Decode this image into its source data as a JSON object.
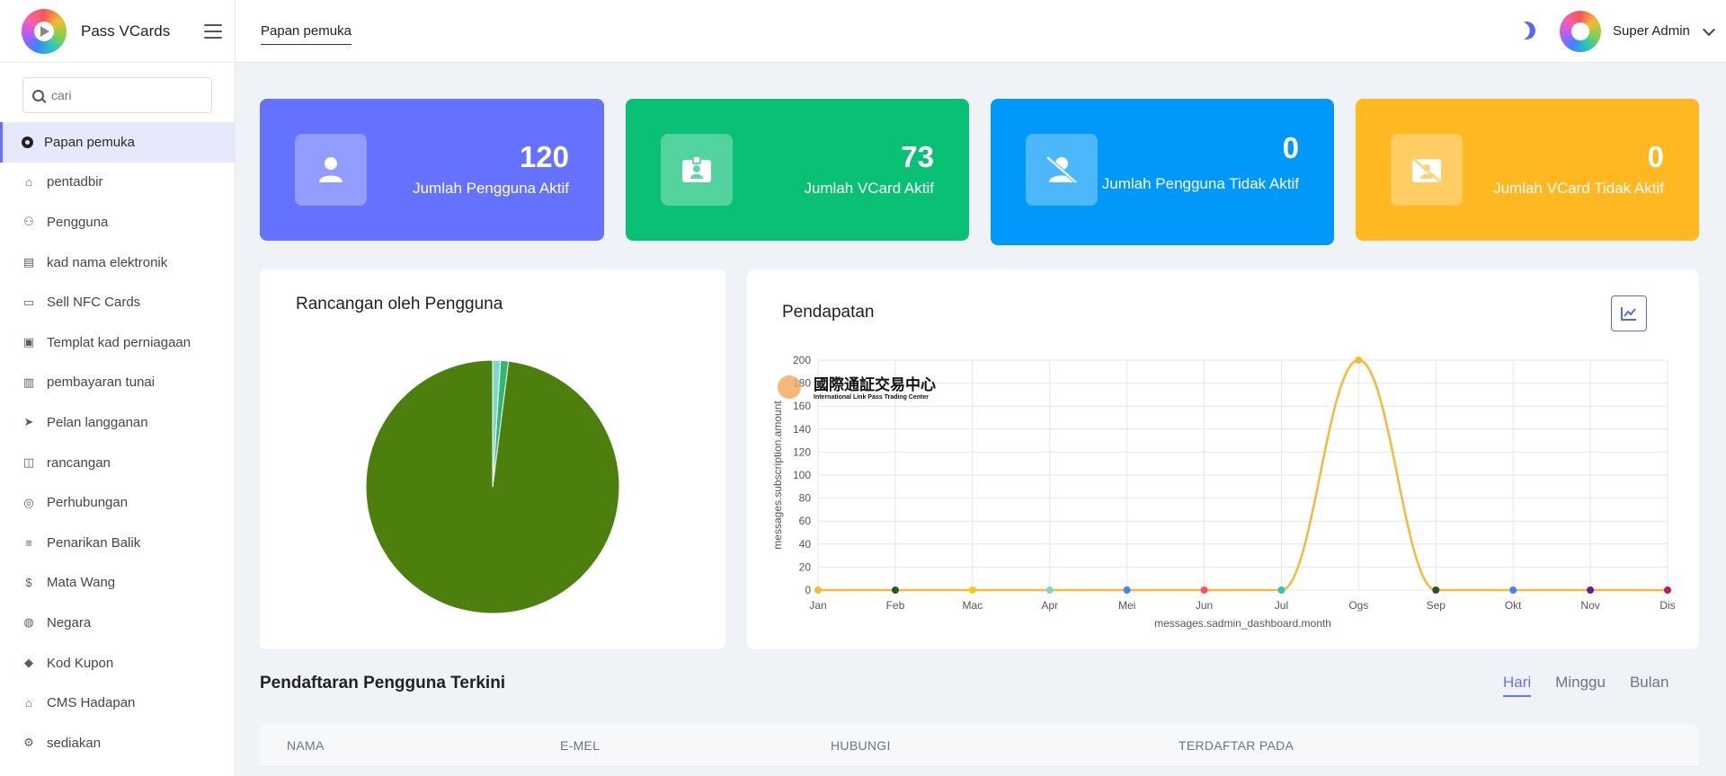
{
  "app": {
    "name": "Pass VCards"
  },
  "header": {
    "tab": "Papan pemuka",
    "user_name": "Super Admin"
  },
  "search": {
    "placeholder": "cari"
  },
  "sidebar": {
    "items": [
      {
        "label": "Papan pemuka",
        "icon": "dashboard-icon",
        "active": true
      },
      {
        "label": "pentadbir",
        "icon": "admin-home-icon"
      },
      {
        "label": "Pengguna",
        "icon": "users-icon"
      },
      {
        "label": "kad nama elektronik",
        "icon": "id-card-icon"
      },
      {
        "label": "Sell NFC Cards",
        "icon": "credit-card-icon"
      },
      {
        "label": "Templat kad perniagaan",
        "icon": "template-icon"
      },
      {
        "label": "pembayaran tunai",
        "icon": "cash-icon"
      },
      {
        "label": "Pelan langganan",
        "icon": "paper-plane-icon"
      },
      {
        "label": "rancangan",
        "icon": "layout-icon"
      },
      {
        "label": "Perhubungan",
        "icon": "coins-icon"
      },
      {
        "label": "Penarikan Balik",
        "icon": "receipt-icon"
      },
      {
        "label": "Mata Wang",
        "icon": "dollar-icon"
      },
      {
        "label": "Negara",
        "icon": "globe-icon"
      },
      {
        "label": "Kod Kupon",
        "icon": "tag-icon"
      },
      {
        "label": "CMS Hadapan",
        "icon": "home-icon"
      },
      {
        "label": "sediakan",
        "icon": "settings-icon"
      }
    ]
  },
  "stats": [
    {
      "value": "120",
      "label": "Jumlah Pengguna Aktif",
      "color": "#6571ff",
      "icon": "user-icon"
    },
    {
      "value": "73",
      "label": "Jumlah VCard Aktif",
      "color": "#0ac074",
      "icon": "vcard-icon"
    },
    {
      "value": "0",
      "label": "Jumlah Pengguna Tidak Aktif",
      "color": "#0099fb",
      "icon": "user-slash-icon"
    },
    {
      "value": "0",
      "label": "Jumlah VCard Tidak Aktif",
      "color": "#ffb821",
      "icon": "vcard-slash-icon"
    }
  ],
  "pie_panel": {
    "title": "Rancangan oleh Pengguna"
  },
  "revenue_panel": {
    "title": "Pendapatan",
    "watermark_line1": "國際通証交易中心",
    "watermark_line2": "International Link Pass Trading Center"
  },
  "chart_data": [
    {
      "type": "pie",
      "title": "Rancangan oleh Pengguna",
      "slices": [
        {
          "value": 0.98,
          "color": "#4d7f0e"
        },
        {
          "value": 0.01,
          "color": "#7fd8c8"
        },
        {
          "value": 0.01,
          "color": "#2eb872"
        }
      ]
    },
    {
      "type": "line",
      "title": "Pendapatan",
      "xlabel": "messages.sadmin_dashboard.month",
      "ylabel": "messages.subscription.amount",
      "categories": [
        "Jan",
        "Feb",
        "Mac",
        "Apr",
        "Mei",
        "Jun",
        "Jul",
        "Ogs",
        "Sep",
        "Okt",
        "Nov",
        "Dis"
      ],
      "values": [
        0,
        0,
        0,
        0,
        0,
        0,
        0,
        200,
        0,
        0,
        0,
        0
      ],
      "yticks": [
        0,
        20,
        40,
        60,
        80,
        100,
        120,
        140,
        160,
        180,
        200
      ],
      "ylim": [
        0,
        200
      ],
      "grid": true,
      "line_color": "#f6b93b",
      "point_colors": [
        "#f6b93b",
        "#1e5b2e",
        "#f6c90e",
        "#7fd8c8",
        "#3a86ff",
        "#ff4d6d",
        "#2ec4b6",
        "#f6b93b",
        "#1e5b2e",
        "#3a86ff",
        "#6a1b9a",
        "#c2185b"
      ]
    }
  ],
  "recent": {
    "title": "Pendaftaran Pengguna Terkini",
    "tabs": [
      "Hari",
      "Minggu",
      "Bulan"
    ],
    "columns": [
      "NAMA",
      "E-MEL",
      "HUBUNGI",
      "TERDAFTAR PADA"
    ]
  }
}
